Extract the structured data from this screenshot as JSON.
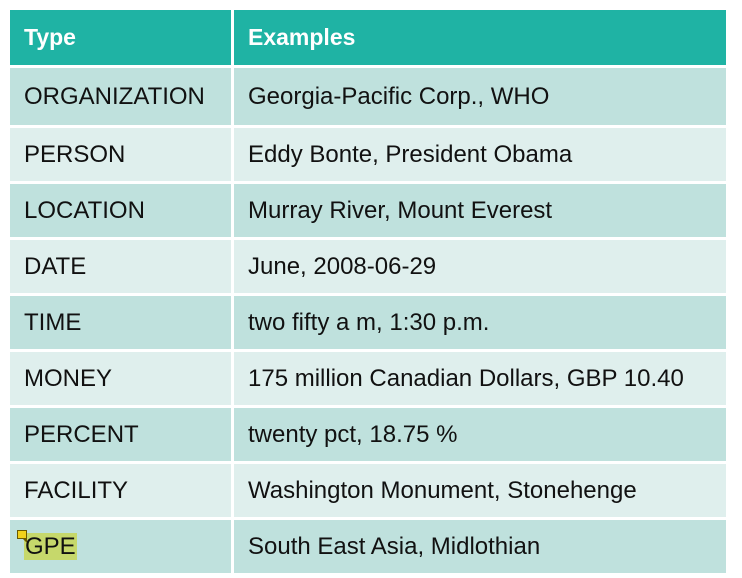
{
  "table": {
    "headers": [
      "Type",
      "Examples"
    ],
    "rows": [
      {
        "type": "ORGANIZATION",
        "examples": "Georgia-Pacific Corp., WHO"
      },
      {
        "type": "PERSON",
        "examples": "Eddy Bonte, President Obama"
      },
      {
        "type": "LOCATION",
        "examples": "Murray River, Mount Everest"
      },
      {
        "type": "DATE",
        "examples": "June, 2008-06-29"
      },
      {
        "type": "TIME",
        "examples": "two fifty a m, 1:30 p.m."
      },
      {
        "type": "MONEY",
        "examples": "175 million Canadian Dollars, GBP 10.40"
      },
      {
        "type": "PERCENT",
        "examples": "twenty pct, 18.75 %"
      },
      {
        "type": "FACILITY",
        "examples": "Washington Monument, Stonehenge"
      },
      {
        "type": "GPE",
        "examples": "South East Asia, Midlothian"
      }
    ]
  },
  "colors": {
    "header_bg": "#1fb3a4",
    "row_odd_bg": "#bfe1dd",
    "row_even_bg": "#dfefed",
    "highlight": "#c6d86b",
    "comment_marker": "#f2d21b"
  },
  "icons": {
    "comment_marker": "comment-icon"
  }
}
